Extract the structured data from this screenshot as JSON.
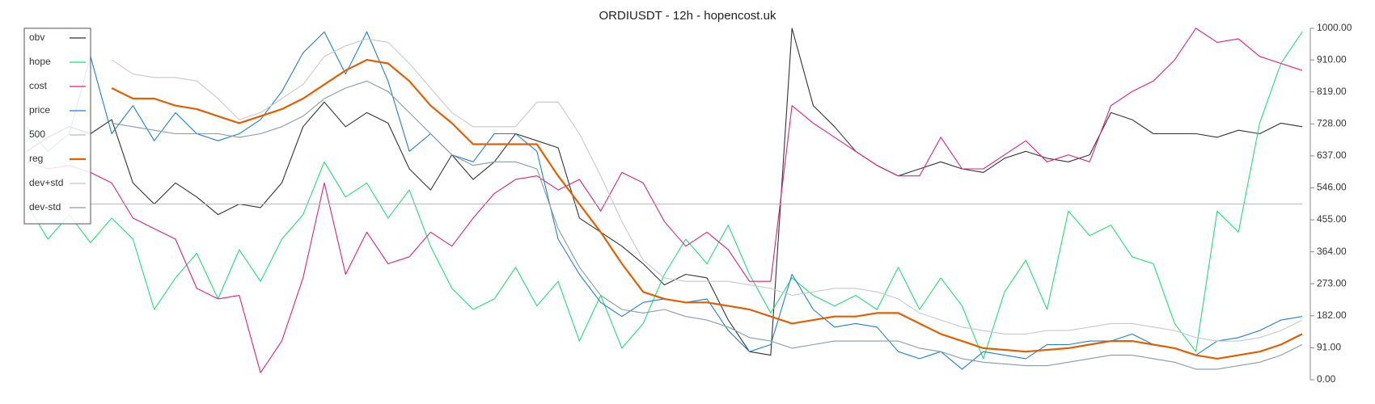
{
  "chart_data": {
    "type": "line",
    "title": "ORDIUSDT - 12h - hopencost.uk",
    "ylim": [
      0,
      1000
    ],
    "yticks": [
      {
        "value": 0,
        "label": "0.00"
      },
      {
        "value": 91,
        "label": "91.00"
      },
      {
        "value": 182,
        "label": "182.00"
      },
      {
        "value": 273,
        "label": "273.00"
      },
      {
        "value": 364,
        "label": "364.00"
      },
      {
        "value": 455,
        "label": "455.00"
      },
      {
        "value": 546,
        "label": "546.00"
      },
      {
        "value": 637,
        "label": "637.00"
      },
      {
        "value": 728,
        "label": "728.00"
      },
      {
        "value": 819,
        "label": "819.00"
      },
      {
        "value": 910,
        "label": "910.00"
      },
      {
        "value": 1000,
        "label": "1000.00"
      }
    ],
    "legend": "top-left",
    "series": [
      {
        "name": "obv",
        "color": "#333333",
        "values": [
          650,
          690,
          720,
          700,
          740,
          560,
          500,
          560,
          520,
          470,
          500,
          490,
          560,
          720,
          790,
          720,
          760,
          730,
          600,
          540,
          640,
          570,
          620,
          700,
          680,
          660,
          460,
          420,
          380,
          330,
          270,
          300,
          290,
          170,
          80,
          70,
          1000,
          780,
          720,
          650,
          610,
          580,
          600,
          620,
          600,
          590,
          630,
          650,
          630,
          620,
          640,
          760,
          740,
          700,
          700,
          700,
          690,
          710,
          700,
          730,
          720
        ]
      },
      {
        "name": "hope",
        "color": "#22dd77",
        "values": [
          500,
          400,
          470,
          390,
          460,
          400,
          200,
          290,
          360,
          230,
          370,
          280,
          400,
          470,
          620,
          520,
          560,
          460,
          540,
          380,
          260,
          200,
          230,
          320,
          210,
          280,
          110,
          240,
          90,
          160,
          300,
          400,
          330,
          440,
          300,
          190,
          290,
          240,
          210,
          240,
          200,
          320,
          200,
          290,
          210,
          60,
          250,
          340,
          200,
          480,
          410,
          440,
          350,
          330,
          160,
          80,
          480,
          420,
          730,
          900,
          990
        ]
      },
      {
        "name": "cost",
        "color": "#e0207a",
        "values": [
          620,
          600,
          610,
          590,
          560,
          460,
          430,
          400,
          260,
          230,
          240,
          20,
          110,
          290,
          560,
          300,
          420,
          330,
          350,
          420,
          380,
          460,
          530,
          570,
          580,
          540,
          570,
          480,
          590,
          560,
          450,
          380,
          420,
          370,
          280,
          280,
          780,
          730,
          690,
          650,
          610,
          580,
          580,
          690,
          600,
          600,
          640,
          680,
          620,
          640,
          620,
          780,
          820,
          850,
          910,
          1000,
          960,
          970,
          920,
          900,
          880
        ]
      },
      {
        "name": "price",
        "color": "#1f7fd6",
        "values": [
          720,
          650,
          700,
          920,
          700,
          780,
          680,
          760,
          700,
          680,
          700,
          740,
          820,
          930,
          990,
          870,
          990,
          850,
          650,
          700,
          640,
          620,
          700,
          700,
          650,
          400,
          300,
          220,
          180,
          220,
          230,
          220,
          230,
          140,
          80,
          100,
          300,
          200,
          150,
          160,
          150,
          80,
          60,
          80,
          30,
          80,
          70,
          60,
          100,
          100,
          110,
          110,
          130,
          100,
          90,
          70,
          110,
          120,
          140,
          170,
          180
        ]
      },
      {
        "name": "500",
        "color": "#bbbbbb",
        "values": [
          500,
          500,
          500,
          500,
          500,
          500,
          500,
          500,
          500,
          500,
          500,
          500,
          500,
          500,
          500,
          500,
          500,
          500,
          500,
          500,
          500,
          500,
          500,
          500,
          500,
          500,
          500,
          500,
          500,
          500,
          500,
          500,
          500,
          500,
          500,
          500,
          500,
          500,
          500,
          500,
          500,
          500,
          500,
          500,
          500,
          500,
          500,
          500,
          500,
          500,
          500,
          500,
          500,
          500,
          500,
          500,
          500,
          500,
          500,
          500,
          500
        ]
      },
      {
        "name": "reg",
        "color": "#e06000",
        "values": [
          null,
          null,
          null,
          null,
          830,
          800,
          800,
          780,
          770,
          750,
          730,
          750,
          770,
          800,
          840,
          880,
          910,
          900,
          850,
          780,
          730,
          670,
          670,
          670,
          670,
          580,
          500,
          420,
          330,
          250,
          230,
          220,
          220,
          210,
          200,
          180,
          160,
          170,
          180,
          180,
          190,
          190,
          160,
          130,
          110,
          90,
          85,
          80,
          85,
          90,
          100,
          110,
          110,
          100,
          90,
          70,
          60,
          70,
          80,
          100,
          130
        ]
      },
      {
        "name": "dev+std",
        "color": "#c8c8c8",
        "values": [
          null,
          null,
          null,
          null,
          910,
          870,
          860,
          860,
          850,
          800,
          740,
          760,
          800,
          840,
          920,
          950,
          970,
          960,
          900,
          830,
          760,
          720,
          720,
          720,
          790,
          790,
          700,
          580,
          450,
          340,
          290,
          280,
          280,
          280,
          270,
          260,
          240,
          250,
          260,
          260,
          250,
          230,
          190,
          170,
          150,
          140,
          130,
          130,
          140,
          140,
          150,
          160,
          160,
          150,
          140,
          120,
          110,
          110,
          120,
          140,
          170
        ]
      },
      {
        "name": "dev-std",
        "color": "#8a9aa5",
        "values": [
          null,
          null,
          null,
          null,
          730,
          720,
          710,
          700,
          700,
          700,
          690,
          700,
          720,
          750,
          800,
          830,
          850,
          820,
          760,
          700,
          640,
          610,
          620,
          620,
          600,
          430,
          320,
          240,
          200,
          190,
          200,
          180,
          170,
          150,
          120,
          110,
          90,
          100,
          110,
          110,
          110,
          110,
          90,
          80,
          60,
          50,
          45,
          40,
          40,
          50,
          60,
          70,
          70,
          60,
          50,
          30,
          30,
          40,
          50,
          70,
          100
        ]
      }
    ]
  }
}
